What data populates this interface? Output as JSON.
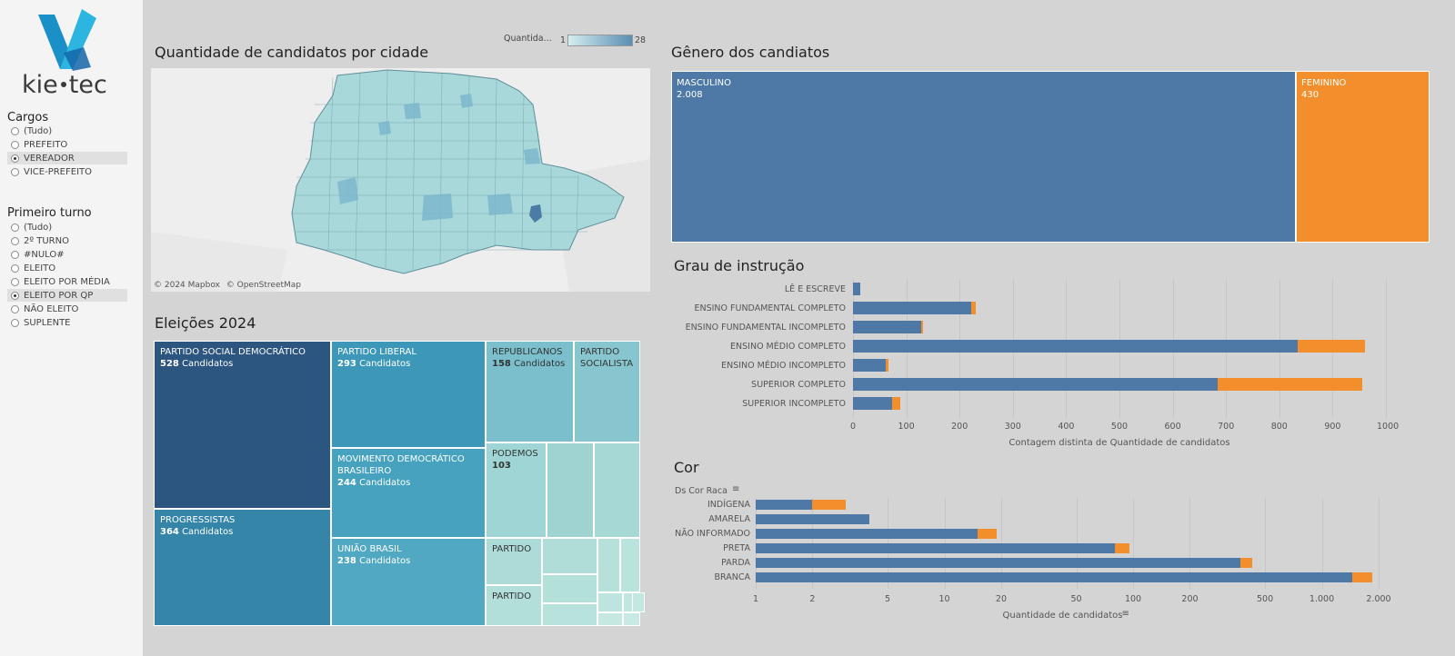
{
  "logo": {
    "text_left": "kie",
    "text_right": "tec"
  },
  "filters": {
    "cargos": {
      "title": "Cargos",
      "options": [
        "(Tudo)",
        "PREFEITO",
        "VEREADOR",
        "VICE-PREFEITO"
      ],
      "selected": "VEREADOR"
    },
    "turno": {
      "title": "Primeiro turno",
      "options": [
        "(Tudo)",
        "2º TURNO",
        "#NULO#",
        "ELEITO",
        "ELEITO POR MÉDIA",
        "ELEITO POR QP",
        "NÃO ELEITO",
        "SUPLENTE"
      ],
      "selected": "ELEITO POR QP"
    }
  },
  "map": {
    "title": "Quantidade de candidatos por cidade",
    "legend_label": "Quantida...",
    "legend_min": "1",
    "legend_max": "28",
    "attribution_1": "© 2024 Mapbox",
    "attribution_2": "© OpenStreetMap"
  },
  "treemap": {
    "title": "Eleições 2024",
    "suffix": "Candidatos",
    "parties": [
      {
        "name": "PARTIDO SOCIAL DEMOCRÁTICO",
        "value": "528"
      },
      {
        "name": "PROGRESSISTAS",
        "value": "364"
      },
      {
        "name": "PARTIDO LIBERAL",
        "value": "293"
      },
      {
        "name": "MOVIMENTO DEMOCRÁTICO BRASILEIRO",
        "value": "244"
      },
      {
        "name": "UNIÃO BRASIL",
        "value": "238"
      },
      {
        "name": "REPUBLICANOS",
        "value": "158"
      },
      {
        "name": "PARTIDO SOCIALISTA",
        "value": ""
      },
      {
        "name": "PODEMOS",
        "value": "103"
      },
      {
        "name": "PARTIDO",
        "value": ""
      },
      {
        "name": "PARTIDO",
        "value": ""
      }
    ]
  },
  "genero": {
    "title": "Gênero dos candiatos",
    "items": [
      {
        "label": "MASCULINO",
        "value": "2.008",
        "count": 2008,
        "color": "#4e79a7"
      },
      {
        "label": "FEMININO",
        "value": "430",
        "count": 430,
        "color": "#f28e2b"
      }
    ]
  },
  "colors": {
    "masculino": "#4e79a7",
    "feminino": "#f28e2b",
    "map_fill": "#a8d8da",
    "map_dark": "#4a8bb0"
  },
  "chart_data": [
    {
      "type": "bar",
      "title": "Grau de instrução",
      "orientation": "horizontal",
      "stacked": true,
      "categories": [
        "LÊ E ESCREVE",
        "ENSINO FUNDAMENTAL COMPLETO",
        "ENSINO FUNDAMENTAL INCOMPLETO",
        "ENSINO MÉDIO COMPLETO",
        "ENSINO MÉDIO INCOMPLETO",
        "SUPERIOR COMPLETO",
        "SUPERIOR INCOMPLETO"
      ],
      "series": [
        {
          "name": "MASCULINO",
          "values": [
            14,
            222,
            128,
            835,
            62,
            684,
            73
          ]
        },
        {
          "name": "FEMININO",
          "values": [
            0,
            8,
            4,
            125,
            4,
            272,
            16
          ]
        }
      ],
      "xlabel": "Contagem distinta de Quantidade de candidatos",
      "xlim": [
        0,
        1000
      ],
      "xticks": [
        0,
        100,
        200,
        300,
        400,
        500,
        600,
        700,
        800,
        900,
        1000
      ],
      "grid": true
    },
    {
      "type": "bar",
      "title": "Cor",
      "orientation": "horizontal",
      "stacked": true,
      "scale": "log",
      "yheader": "Ds Cor Raca",
      "categories": [
        "INDÍGENA",
        "AMARELA",
        "NÃO INFORMADO",
        "PRETA",
        "PARDA",
        "BRANCA"
      ],
      "series": [
        {
          "name": "MASCULINO",
          "values": [
            2,
            4,
            15,
            80,
            370,
            1450
          ]
        },
        {
          "name": "FEMININO",
          "values": [
            1,
            0,
            4,
            16,
            60,
            400
          ]
        }
      ],
      "xlabel": "Quantidade de candidatos",
      "xlim": [
        1,
        2000
      ],
      "xticks": [
        1,
        2,
        5,
        10,
        20,
        50,
        100,
        200,
        500,
        1000,
        2000
      ],
      "xtick_labels": [
        "1",
        "2",
        "5",
        "10",
        "20",
        "50",
        "100",
        "200",
        "500",
        "1.000",
        "2.000"
      ],
      "grid": true
    }
  ]
}
